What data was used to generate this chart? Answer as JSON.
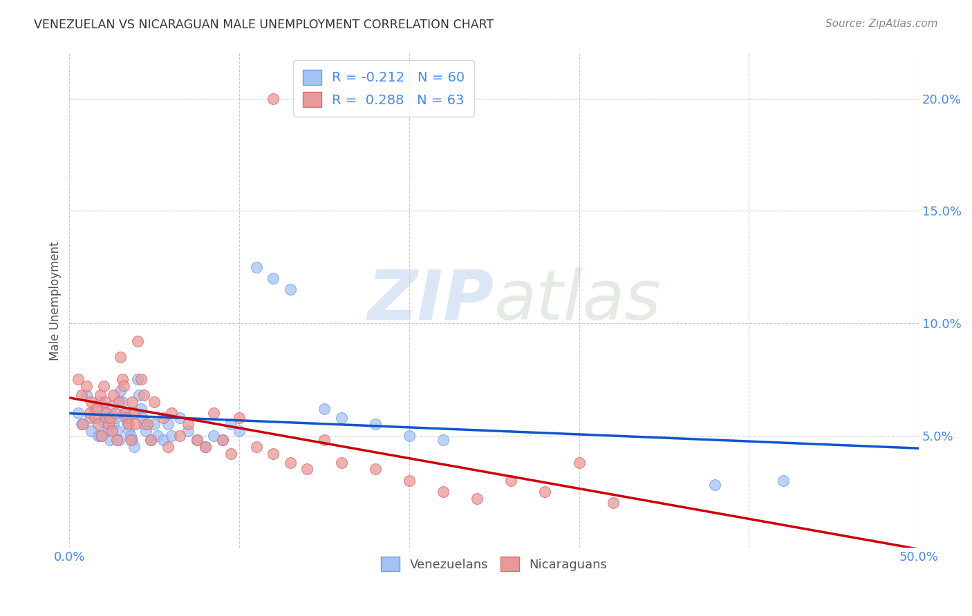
{
  "title": "VENEZUELAN VS NICARAGUAN MALE UNEMPLOYMENT CORRELATION CHART",
  "source": "Source: ZipAtlas.com",
  "ylabel": "Male Unemployment",
  "xlim": [
    0.0,
    0.5
  ],
  "ylim": [
    0.0,
    0.22
  ],
  "xticks": [
    0.0,
    0.5
  ],
  "xticklabels": [
    "0.0%",
    "50.0%"
  ],
  "yticks": [
    0.05,
    0.1,
    0.15,
    0.2
  ],
  "yticklabels": [
    "5.0%",
    "10.0%",
    "15.0%",
    "20.0%"
  ],
  "venezuelan_color": "#a4c2f4",
  "venezuelan_edge_color": "#6d9eeb",
  "nicaraguan_color": "#ea9999",
  "nicaraguan_edge_color": "#e06666",
  "venezuelan_line_color": "#1155cc",
  "nicaraguan_line_color": "#cc0000",
  "watermark_color": "#d0dff0",
  "background_color": "#ffffff",
  "grid_color": "#cccccc",
  "tick_color": "#4488ff",
  "title_color": "#333333",
  "source_color": "#888888",
  "ylabel_color": "#555555",
  "venezuelan_R": -0.212,
  "nicaraguan_R": 0.288,
  "venezuelan_N": 60,
  "nicaraguan_N": 63,
  "venezuelan_scatter_x": [
    0.005,
    0.007,
    0.01,
    0.012,
    0.013,
    0.015,
    0.016,
    0.017,
    0.018,
    0.018,
    0.02,
    0.021,
    0.022,
    0.023,
    0.024,
    0.025,
    0.026,
    0.027,
    0.028,
    0.029,
    0.03,
    0.031,
    0.032,
    0.033,
    0.034,
    0.035,
    0.036,
    0.037,
    0.038,
    0.039,
    0.04,
    0.041,
    0.042,
    0.043,
    0.044,
    0.045,
    0.048,
    0.05,
    0.052,
    0.055,
    0.058,
    0.06,
    0.065,
    0.07,
    0.075,
    0.08,
    0.085,
    0.09,
    0.095,
    0.1,
    0.11,
    0.12,
    0.13,
    0.15,
    0.16,
    0.18,
    0.2,
    0.22,
    0.38,
    0.42
  ],
  "venezuelan_scatter_y": [
    0.06,
    0.055,
    0.068,
    0.058,
    0.052,
    0.062,
    0.058,
    0.05,
    0.065,
    0.05,
    0.06,
    0.055,
    0.058,
    0.052,
    0.048,
    0.063,
    0.055,
    0.058,
    0.052,
    0.048,
    0.07,
    0.065,
    0.06,
    0.058,
    0.055,
    0.052,
    0.05,
    0.048,
    0.045,
    0.06,
    0.075,
    0.068,
    0.062,
    0.058,
    0.055,
    0.052,
    0.048,
    0.055,
    0.05,
    0.048,
    0.055,
    0.05,
    0.058,
    0.052,
    0.048,
    0.045,
    0.05,
    0.048,
    0.055,
    0.052,
    0.125,
    0.12,
    0.115,
    0.062,
    0.058,
    0.055,
    0.05,
    0.048,
    0.028,
    0.03
  ],
  "nicaraguan_scatter_x": [
    0.005,
    0.007,
    0.008,
    0.01,
    0.012,
    0.013,
    0.015,
    0.016,
    0.017,
    0.018,
    0.019,
    0.02,
    0.021,
    0.022,
    0.023,
    0.024,
    0.025,
    0.026,
    0.027,
    0.028,
    0.029,
    0.03,
    0.031,
    0.032,
    0.033,
    0.034,
    0.035,
    0.036,
    0.037,
    0.038,
    0.039,
    0.04,
    0.042,
    0.044,
    0.046,
    0.048,
    0.05,
    0.055,
    0.058,
    0.06,
    0.065,
    0.07,
    0.075,
    0.08,
    0.085,
    0.09,
    0.095,
    0.1,
    0.11,
    0.12,
    0.13,
    0.14,
    0.15,
    0.16,
    0.18,
    0.2,
    0.22,
    0.24,
    0.26,
    0.28,
    0.3,
    0.32,
    0.12
  ],
  "nicaraguan_scatter_y": [
    0.075,
    0.068,
    0.055,
    0.072,
    0.06,
    0.065,
    0.058,
    0.062,
    0.055,
    0.068,
    0.05,
    0.072,
    0.065,
    0.06,
    0.055,
    0.058,
    0.052,
    0.068,
    0.06,
    0.048,
    0.065,
    0.085,
    0.075,
    0.072,
    0.06,
    0.058,
    0.055,
    0.048,
    0.065,
    0.06,
    0.055,
    0.092,
    0.075,
    0.068,
    0.055,
    0.048,
    0.065,
    0.058,
    0.045,
    0.06,
    0.05,
    0.055,
    0.048,
    0.045,
    0.06,
    0.048,
    0.042,
    0.058,
    0.045,
    0.042,
    0.038,
    0.035,
    0.048,
    0.038,
    0.035,
    0.03,
    0.025,
    0.022,
    0.03,
    0.025,
    0.038,
    0.02,
    0.2
  ]
}
